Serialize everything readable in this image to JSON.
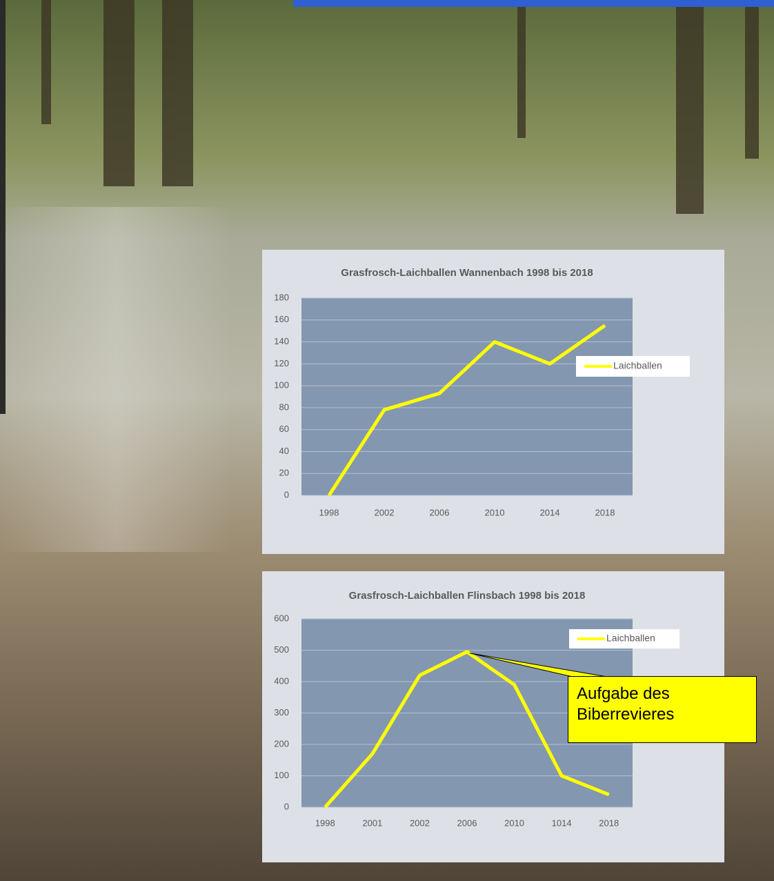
{
  "chart_data": [
    {
      "type": "line",
      "title": "Grasfrosch-Laichballen Wannenbach 1998 bis 2018",
      "categories": [
        "1998",
        "2002",
        "2006",
        "2010",
        "2014",
        "2018"
      ],
      "series": [
        {
          "name": "Laichballen",
          "color": "#ffff00",
          "values": [
            0,
            78,
            93,
            140,
            120,
            155
          ]
        }
      ],
      "ylim": [
        0,
        180
      ],
      "yticks": [
        0,
        20,
        40,
        60,
        80,
        100,
        120,
        140,
        160,
        180
      ],
      "grid": true,
      "legend": "right"
    },
    {
      "type": "line",
      "title": "Grasfrosch-Laichballen Flinsbach 1998 bis 2018",
      "categories": [
        "1998",
        "2001",
        "2002",
        "2006",
        "2010",
        "1014",
        "2018"
      ],
      "series": [
        {
          "name": "Laichballen",
          "color": "#ffff00",
          "values": [
            0,
            170,
            420,
            495,
            390,
            100,
            40
          ]
        }
      ],
      "ylim": [
        0,
        600
      ],
      "yticks": [
        0,
        100,
        200,
        300,
        400,
        500,
        600
      ],
      "grid": true,
      "legend": "upper right",
      "annotation": "Aufgabe des Biberrevieres"
    }
  ]
}
